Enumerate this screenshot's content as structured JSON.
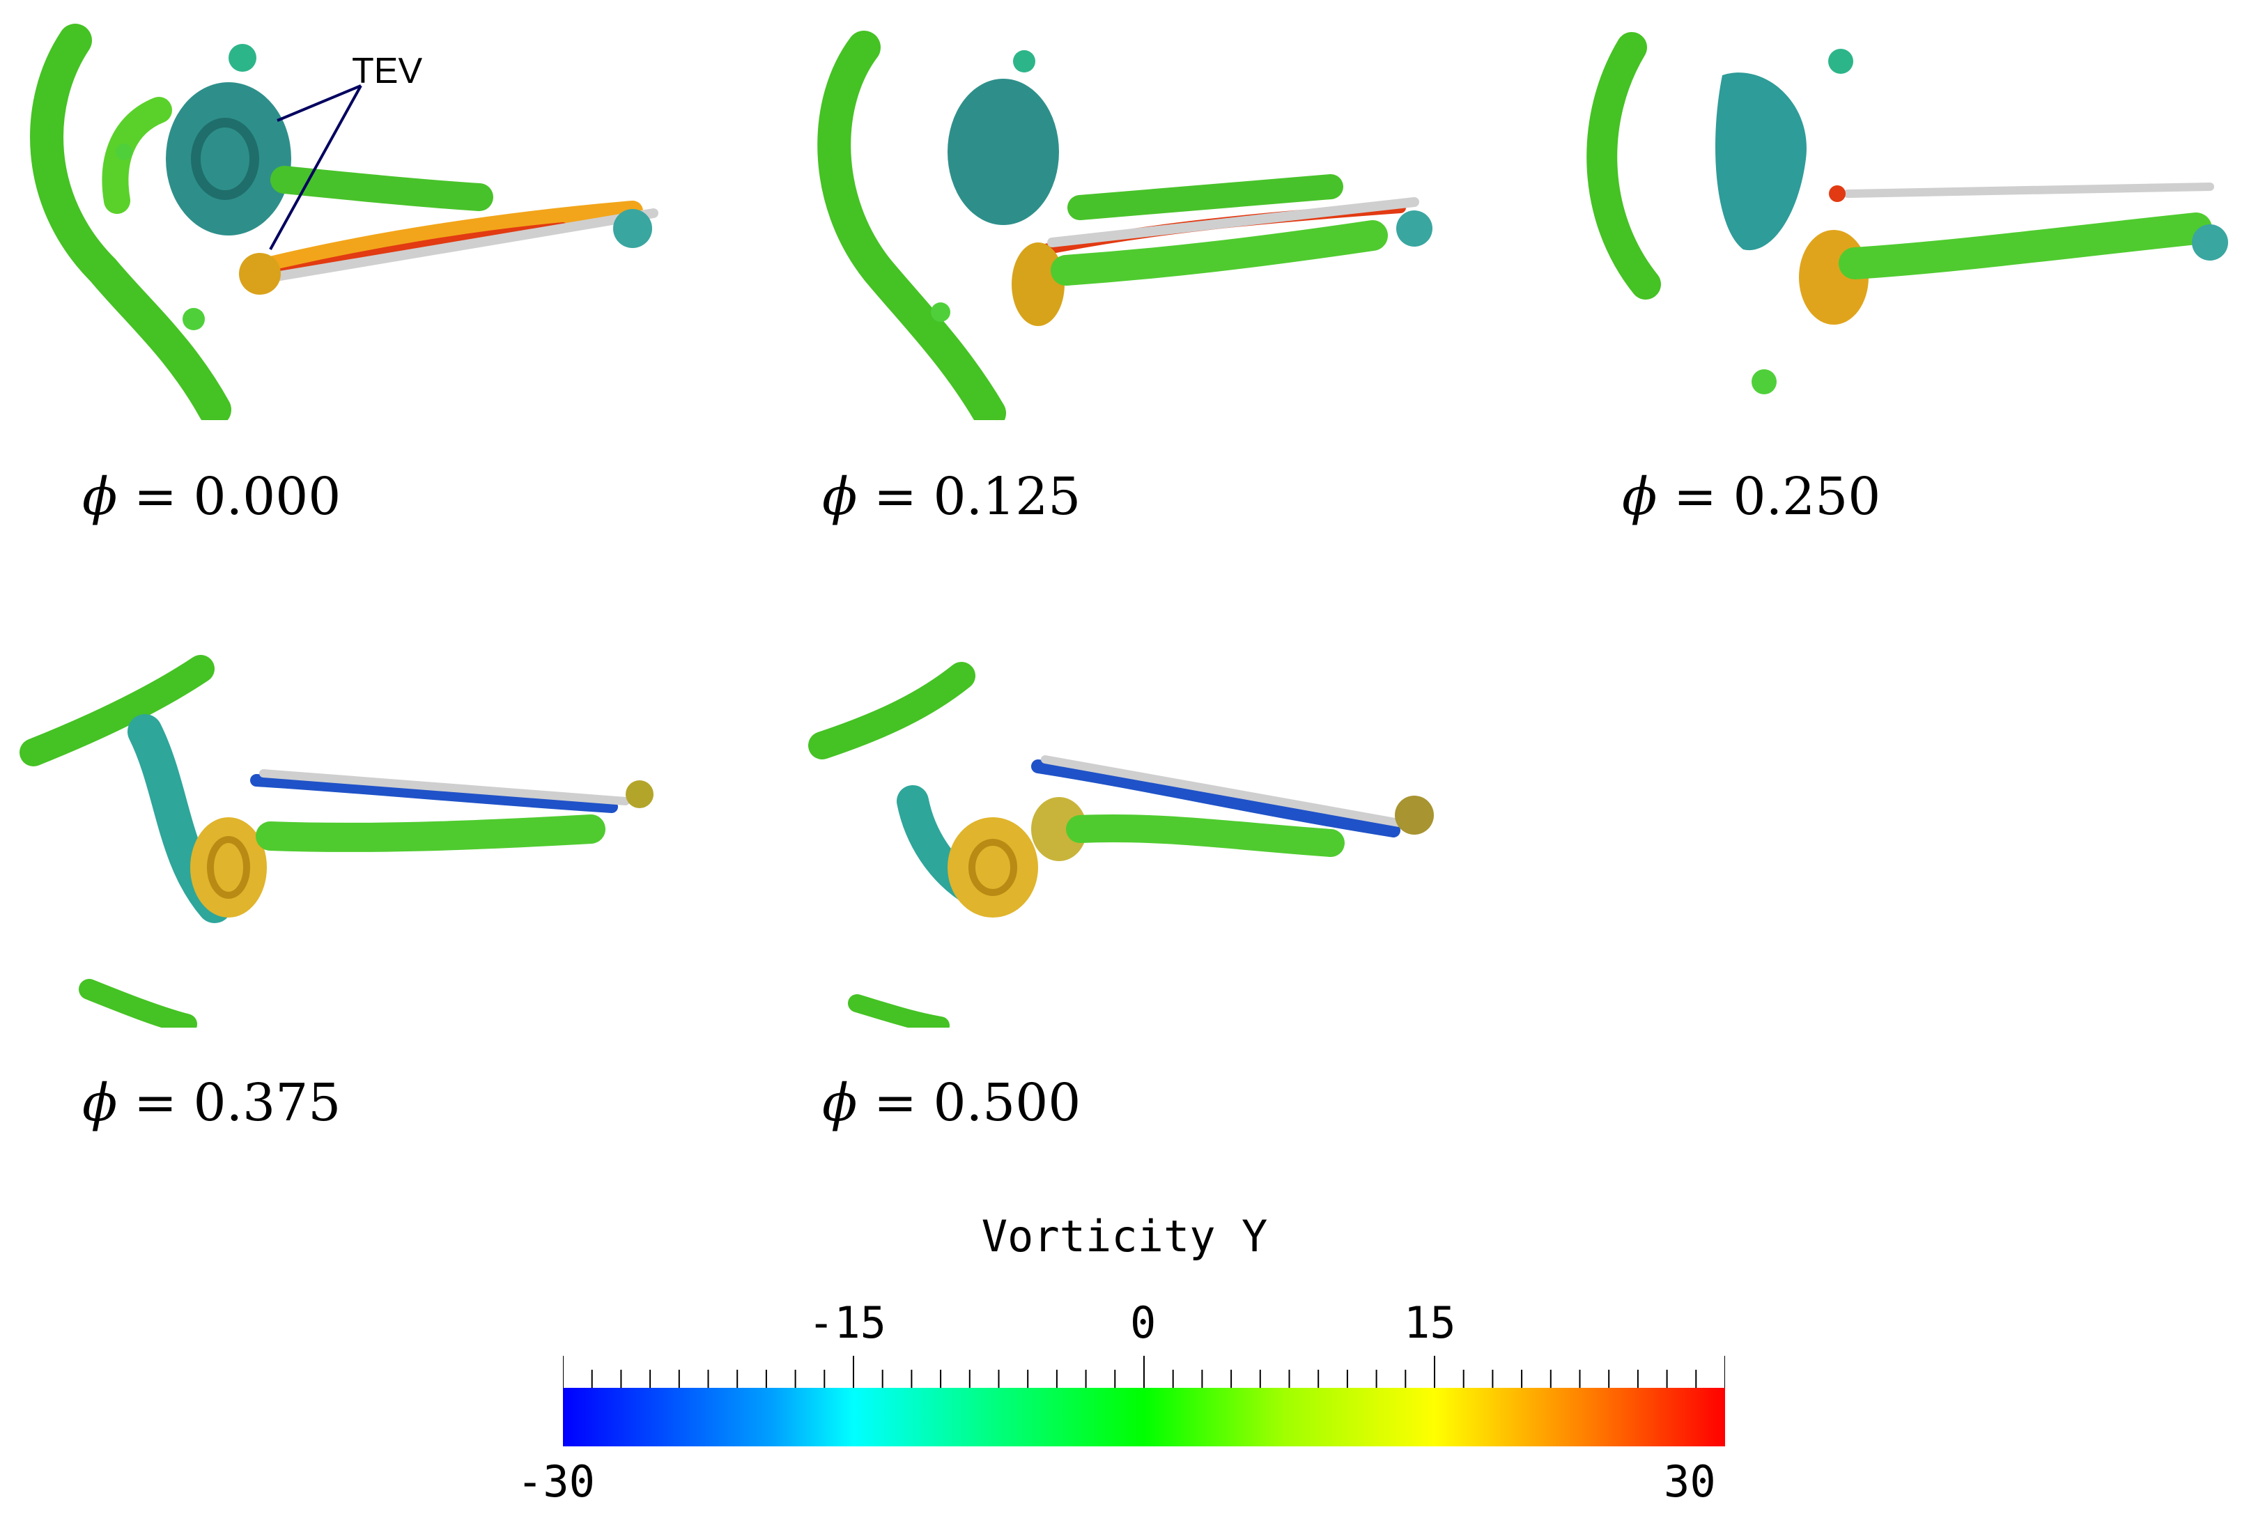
{
  "annotation": {
    "label": "TEV"
  },
  "panels": [
    {
      "phi_symbol": "ϕ",
      "equals": "=",
      "value": "0.000"
    },
    {
      "phi_symbol": "ϕ",
      "equals": "=",
      "value": "0.125"
    },
    {
      "phi_symbol": "ϕ",
      "equals": "=",
      "value": "0.250"
    },
    {
      "phi_symbol": "ϕ",
      "equals": "=",
      "value": "0.375"
    },
    {
      "phi_symbol": "ϕ",
      "equals": "=",
      "value": "0.500"
    }
  ],
  "colorbar": {
    "title": "Vorticity Y",
    "min_label": "-30",
    "max_label": "30",
    "mid_labels": [
      "-15",
      "0",
      "15"
    ],
    "range": [
      -30,
      30
    ],
    "colors": [
      "#0000ff",
      "#00ffff",
      "#00ff00",
      "#ffff00",
      "#ff0000"
    ]
  }
}
